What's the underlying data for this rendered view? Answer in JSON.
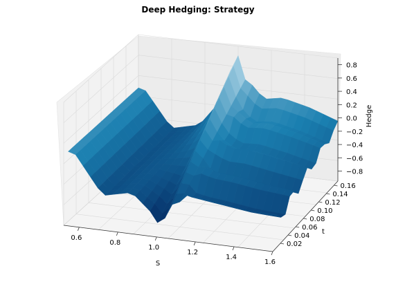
{
  "chart_data": {
    "type": "surface3d",
    "title": "Deep Hedging: Strategy",
    "xlabel": "S",
    "ylabel": "t",
    "zlabel": "Hedge",
    "x_ticks": [
      "0.6",
      "0.8",
      "1.0",
      "1.2",
      "1.4",
      "1.6"
    ],
    "y_ticks": [
      "0.02",
      "0.04",
      "0.06",
      "0.08",
      "0.10",
      "0.12",
      "0.14",
      "0.16"
    ],
    "z_ticks": [
      "0.8",
      "0.6",
      "0.4",
      "0.2",
      "0.0",
      "−0.2",
      "−0.4",
      "−0.6",
      "−0.8"
    ],
    "xlim": [
      0.52,
      1.6
    ],
    "ylim": [
      0.0,
      0.17
    ],
    "zlim": [
      -0.95,
      0.9
    ],
    "colormap": "ocean-blue",
    "colors": {
      "low": "#001a55",
      "mid": "#1a7fb0",
      "high": "#e8f6fb",
      "pane": "#f2f2f2",
      "grid": "#d9d9d9"
    },
    "grid": true,
    "surface_profile": {
      "description_points_S": [
        0.55,
        0.7,
        0.85,
        0.95,
        1.0,
        1.05,
        1.1,
        1.2,
        1.3,
        1.45,
        1.6
      ],
      "hedge_at_max_t": [
        0.1,
        -0.45,
        -0.35,
        0.0,
        0.3,
        0.85,
        0.4,
        0.1,
        0.15,
        0.05,
        -0.1
      ],
      "hedge_at_min_t": [
        0.1,
        -0.5,
        -0.4,
        -0.7,
        -0.95,
        -0.6,
        -0.5,
        -0.5,
        -0.55,
        -0.6,
        -0.6
      ]
    }
  }
}
